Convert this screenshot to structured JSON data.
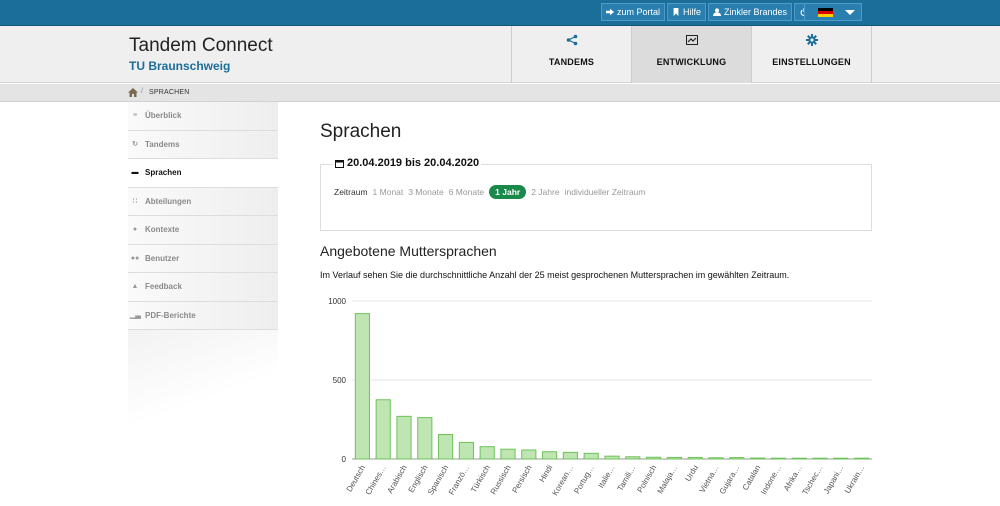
{
  "topbar": {
    "portal_label": "zum Portal",
    "help_label": "Hilfe",
    "user_label": "Zinkler Brandes",
    "flag_colors": [
      "#000000",
      "#dd0000",
      "#ffce00"
    ]
  },
  "brand": {
    "title": "Tandem Connect",
    "subtitle": "TU Braunschweig"
  },
  "nav": {
    "tabs": [
      {
        "label": "TANDEMS",
        "icon": "share-icon"
      },
      {
        "label": "ENTWICKLUNG",
        "icon": "chart-icon",
        "active": true
      },
      {
        "label": "EINSTELLUNGEN",
        "icon": "cog-icon"
      }
    ]
  },
  "breadcrumb": {
    "current": "SPRACHEN"
  },
  "sidebar": {
    "items": [
      {
        "label": "Überblick",
        "icon": "list-icon"
      },
      {
        "label": "Tandems",
        "icon": "refresh-icon"
      },
      {
        "label": "Sprachen",
        "icon": "flag-icon",
        "active": true
      },
      {
        "label": "Abteilungen",
        "icon": "grid-icon"
      },
      {
        "label": "Kontexte",
        "icon": "globe-icon"
      },
      {
        "label": "Benutzer",
        "icon": "users-icon"
      },
      {
        "label": "Feedback",
        "icon": "thumb-icon"
      },
      {
        "label": "PDF-Berichte",
        "icon": "bar-chart-icon"
      }
    ]
  },
  "page": {
    "title": "Sprachen",
    "range_title": "20.04.2019 bis 20.04.2020",
    "range": {
      "label": "Zeitraum",
      "options": [
        "1 Monat",
        "3 Monate",
        "6 Monate",
        "1 Jahr",
        "2 Jahre",
        "individueller Zeitraum"
      ],
      "selected": "1 Jahr"
    },
    "section_title": "Angebotene Muttersprachen",
    "section_desc": "Im Verlauf sehen Sie die durchschnittliche Anzahl der 25 meist gesprochenen Muttersprachen im gewählten Zeitraum."
  },
  "chart_data": {
    "type": "bar",
    "categories": [
      "Deutsch",
      "Chines…",
      "Arabisch",
      "Englisch",
      "Spanisch",
      "Franzö…",
      "Türkisch",
      "Russisch",
      "Persisch",
      "Hindi",
      "Korean…",
      "Portug…",
      "Italie…",
      "Tamili…",
      "Polnisch",
      "Malaja…",
      "Urdu",
      "Vietna…",
      "Gujara…",
      "Catalan",
      "Indone…",
      "Afrika…",
      "Tschec…",
      "Japani…",
      "Ukrain…"
    ],
    "values": [
      920,
      375,
      270,
      262,
      155,
      105,
      78,
      62,
      57,
      46,
      42,
      36,
      18,
      14,
      11,
      10,
      10,
      8,
      9,
      6,
      5,
      5,
      5,
      5,
      5
    ],
    "ylim": [
      0,
      1000
    ],
    "yticks": [
      0,
      500,
      1000
    ],
    "grid": true,
    "bar_fill": "#bfe5b3",
    "bar_stroke": "#6ec25a"
  }
}
